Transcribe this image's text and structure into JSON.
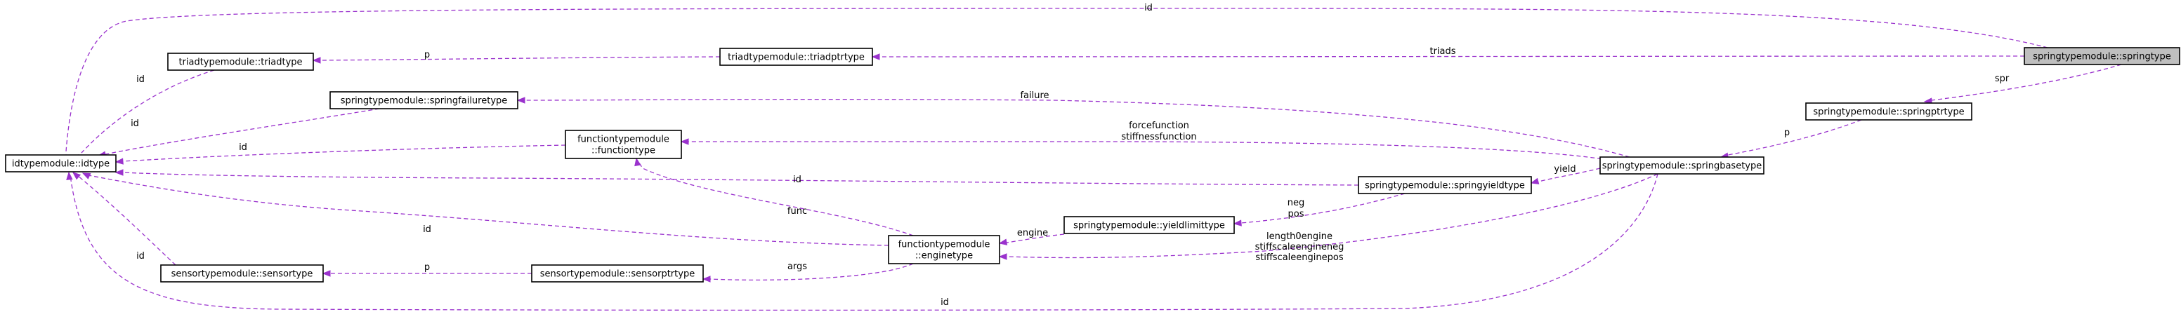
{
  "diagram": {
    "nodes": [
      {
        "id": "springtype",
        "label": [
          "springtypemodule::springtype"
        ]
      },
      {
        "id": "idtype",
        "label": [
          "idtypemodule::idtype"
        ]
      },
      {
        "id": "triadptrtype",
        "label": [
          "triadtypemodule::triadptrtype"
        ]
      },
      {
        "id": "triadtype",
        "label": [
          "triadtypemodule::triadtype"
        ]
      },
      {
        "id": "springptrtype",
        "label": [
          "springtypemodule::springptrtype"
        ]
      },
      {
        "id": "springbasetype",
        "label": [
          "springtypemodule::springbasetype"
        ]
      },
      {
        "id": "springfailuretype",
        "label": [
          "springtypemodule::springfailuretype"
        ]
      },
      {
        "id": "functiontype",
        "label": [
          "functiontypemodule",
          "::functiontype"
        ]
      },
      {
        "id": "springyieldtype",
        "label": [
          "springtypemodule::springyieldtype"
        ]
      },
      {
        "id": "yieldlimittype",
        "label": [
          "springtypemodule::yieldlimittype"
        ]
      },
      {
        "id": "enginetype",
        "label": [
          "functiontypemodule",
          "::enginetype"
        ]
      },
      {
        "id": "sensorptrtype",
        "label": [
          "sensortypemodule::sensorptrtype"
        ]
      },
      {
        "id": "sensortype",
        "label": [
          "sensortypemodule::sensortype"
        ]
      }
    ],
    "edges": [
      {
        "from": "springtype",
        "to": "idtype",
        "label": [
          "id"
        ]
      },
      {
        "from": "springtype",
        "to": "triadptrtype",
        "label": [
          "triads"
        ]
      },
      {
        "from": "triadptrtype",
        "to": "triadtype",
        "label": [
          "p"
        ]
      },
      {
        "from": "triadtype",
        "to": "idtype",
        "label": [
          "id"
        ]
      },
      {
        "from": "springtype",
        "to": "springptrtype",
        "label": [
          "spr"
        ]
      },
      {
        "from": "springptrtype",
        "to": "springbasetype",
        "label": [
          "p"
        ]
      },
      {
        "from": "springbasetype",
        "to": "springfailuretype",
        "label": [
          "failure"
        ]
      },
      {
        "from": "springfailuretype",
        "to": "idtype",
        "label": [
          "id"
        ]
      },
      {
        "from": "springbasetype",
        "to": "functiontype",
        "label": [
          "forcefunction",
          "stiffnessfunction"
        ]
      },
      {
        "from": "functiontype",
        "to": "idtype",
        "label": [
          "id"
        ]
      },
      {
        "from": "springbasetype",
        "to": "springyieldtype",
        "label": [
          "yield"
        ]
      },
      {
        "from": "springyieldtype",
        "to": "idtype",
        "label": [
          "id"
        ]
      },
      {
        "from": "springyieldtype",
        "to": "yieldlimittype",
        "label": [
          "neg",
          "pos"
        ]
      },
      {
        "from": "yieldlimittype",
        "to": "enginetype",
        "label": [
          "engine"
        ]
      },
      {
        "from": "springbasetype",
        "to": "enginetype",
        "label": [
          "length0engine",
          "stiffscaleengineneg",
          "stiffscaleenginepos"
        ]
      },
      {
        "from": "enginetype",
        "to": "functiontype",
        "label": [
          "func"
        ]
      },
      {
        "from": "enginetype",
        "to": "idtype",
        "label": [
          "id"
        ]
      },
      {
        "from": "enginetype",
        "to": "sensorptrtype",
        "label": [
          "args"
        ]
      },
      {
        "from": "sensorptrtype",
        "to": "sensortype",
        "label": [
          "p"
        ]
      },
      {
        "from": "sensortype",
        "to": "idtype",
        "label": [
          "id"
        ]
      },
      {
        "from": "springbasetype",
        "to": "idtype",
        "label": [
          "id"
        ]
      }
    ]
  }
}
